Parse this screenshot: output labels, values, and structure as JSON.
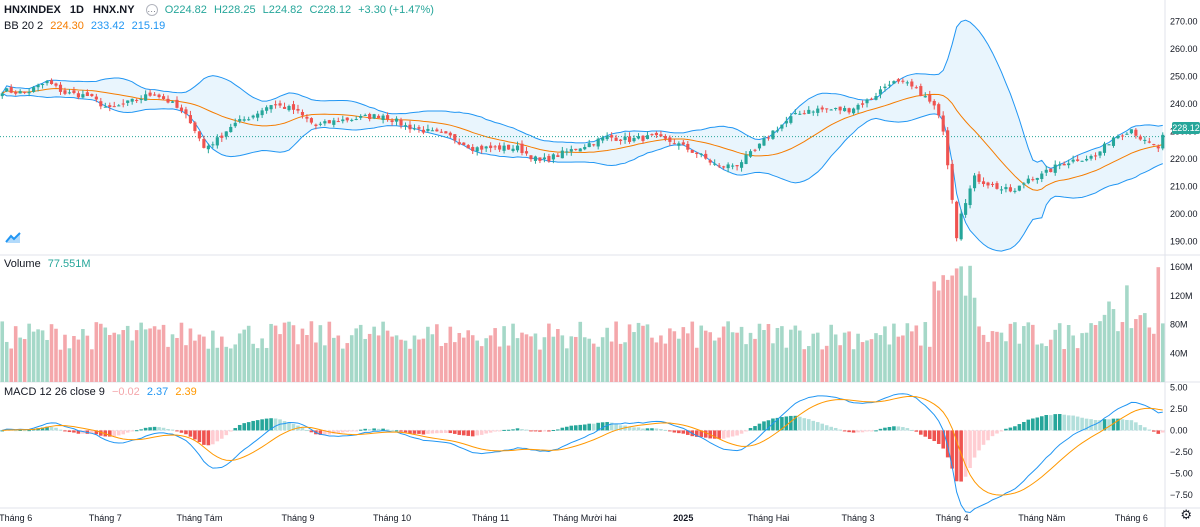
{
  "header": {
    "symbol": "HNXINDEX",
    "interval": "1D",
    "exchange": "HNX.NY",
    "open": "O224.82",
    "high": "H228.25",
    "low": "L224.82",
    "close": "C228.12",
    "change": "+3.30 (+1.47%)"
  },
  "bb": {
    "label": "BB 20 2",
    "basis": "224.30",
    "upper": "233.42",
    "lower": "215.19"
  },
  "volume": {
    "label": "Volume",
    "value": "77.551M"
  },
  "macd": {
    "label": "MACD 12 26 close 9",
    "hist": "−0.02",
    "macd": "2.37",
    "signal": "2.39"
  },
  "last_price": "228.12",
  "colors": {
    "up": "#26a69a",
    "down": "#ef5350",
    "upVol": "#a5d8c8",
    "downVol": "#f4a7ab",
    "bbLine": "#2196f3",
    "bbFill": "#e3f2fd",
    "basis": "#f57c00",
    "signal": "#ff9800",
    "macd": "#2196f3"
  },
  "chart_data": [
    {
      "type": "candlestick",
      "title": "HNXINDEX 1D HNX.NY",
      "ylim": [
        185,
        275
      ],
      "y_ticks": [
        "270.00",
        "260.00",
        "250.00",
        "240.00",
        "230.00",
        "220.00",
        "210.00",
        "200.00",
        "190.00"
      ],
      "x_ticks": [
        "Tháng 6",
        "Tháng 7",
        "Tháng Tám",
        "Tháng 9",
        "Tháng 10",
        "Tháng 11",
        "Tháng Mười hai",
        "2025",
        "Tháng Hai",
        "Tháng 3",
        "Tháng 4",
        "Tháng Năm",
        "Tháng 6"
      ],
      "x_tick_bars": [
        3,
        23,
        44,
        66,
        87,
        109,
        130,
        152,
        171,
        191,
        212,
        232,
        252
      ],
      "close_path": [
        [
          0,
          245
        ],
        [
          5,
          244
        ],
        [
          10,
          248
        ],
        [
          14,
          244
        ],
        [
          19,
          243
        ],
        [
          24,
          238
        ],
        [
          29,
          241
        ],
        [
          34,
          244
        ],
        [
          38,
          240
        ],
        [
          42,
          234
        ],
        [
          45,
          224
        ],
        [
          48,
          227
        ],
        [
          51,
          232
        ],
        [
          56,
          236
        ],
        [
          60,
          240
        ],
        [
          65,
          238
        ],
        [
          70,
          232
        ],
        [
          75,
          234
        ],
        [
          80,
          235
        ],
        [
          85,
          236
        ],
        [
          90,
          232
        ],
        [
          95,
          230
        ],
        [
          100,
          228
        ],
        [
          105,
          224
        ],
        [
          110,
          224
        ],
        [
          115,
          224
        ],
        [
          120,
          219
        ],
        [
          125,
          222
        ],
        [
          130,
          225
        ],
        [
          135,
          228
        ],
        [
          140,
          227
        ],
        [
          145,
          228
        ],
        [
          150,
          226
        ],
        [
          155,
          222
        ],
        [
          160,
          217
        ],
        [
          164,
          218
        ],
        [
          168,
          223
        ],
        [
          172,
          230
        ],
        [
          176,
          235
        ],
        [
          180,
          238
        ],
        [
          185,
          238
        ],
        [
          189,
          238
        ],
        [
          194,
          242
        ],
        [
          198,
          248
        ],
        [
          202,
          247
        ],
        [
          205,
          244
        ],
        [
          208,
          239
        ],
        [
          210,
          231
        ],
        [
          212,
          206
        ],
        [
          213,
          192
        ],
        [
          214,
          201
        ],
        [
          217,
          213
        ],
        [
          220,
          211
        ],
        [
          223,
          209
        ],
        [
          226,
          208
        ],
        [
          229,
          213
        ],
        [
          232,
          214
        ],
        [
          236,
          218
        ],
        [
          240,
          220
        ],
        [
          244,
          221
        ],
        [
          248,
          228
        ],
        [
          252,
          231
        ],
        [
          255,
          226
        ],
        [
          258,
          224
        ],
        [
          259,
          228
        ]
      ],
      "volume_ylim": [
        0,
        170
      ],
      "volume_ticks": [
        "160M",
        "120M",
        "80M",
        "40M"
      ],
      "macd_ylim": [
        -9,
        5.5
      ],
      "macd_ticks": [
        "5.00",
        "2.50",
        "0.00",
        "−2.50",
        "−5.00",
        "−7.50"
      ]
    }
  ]
}
